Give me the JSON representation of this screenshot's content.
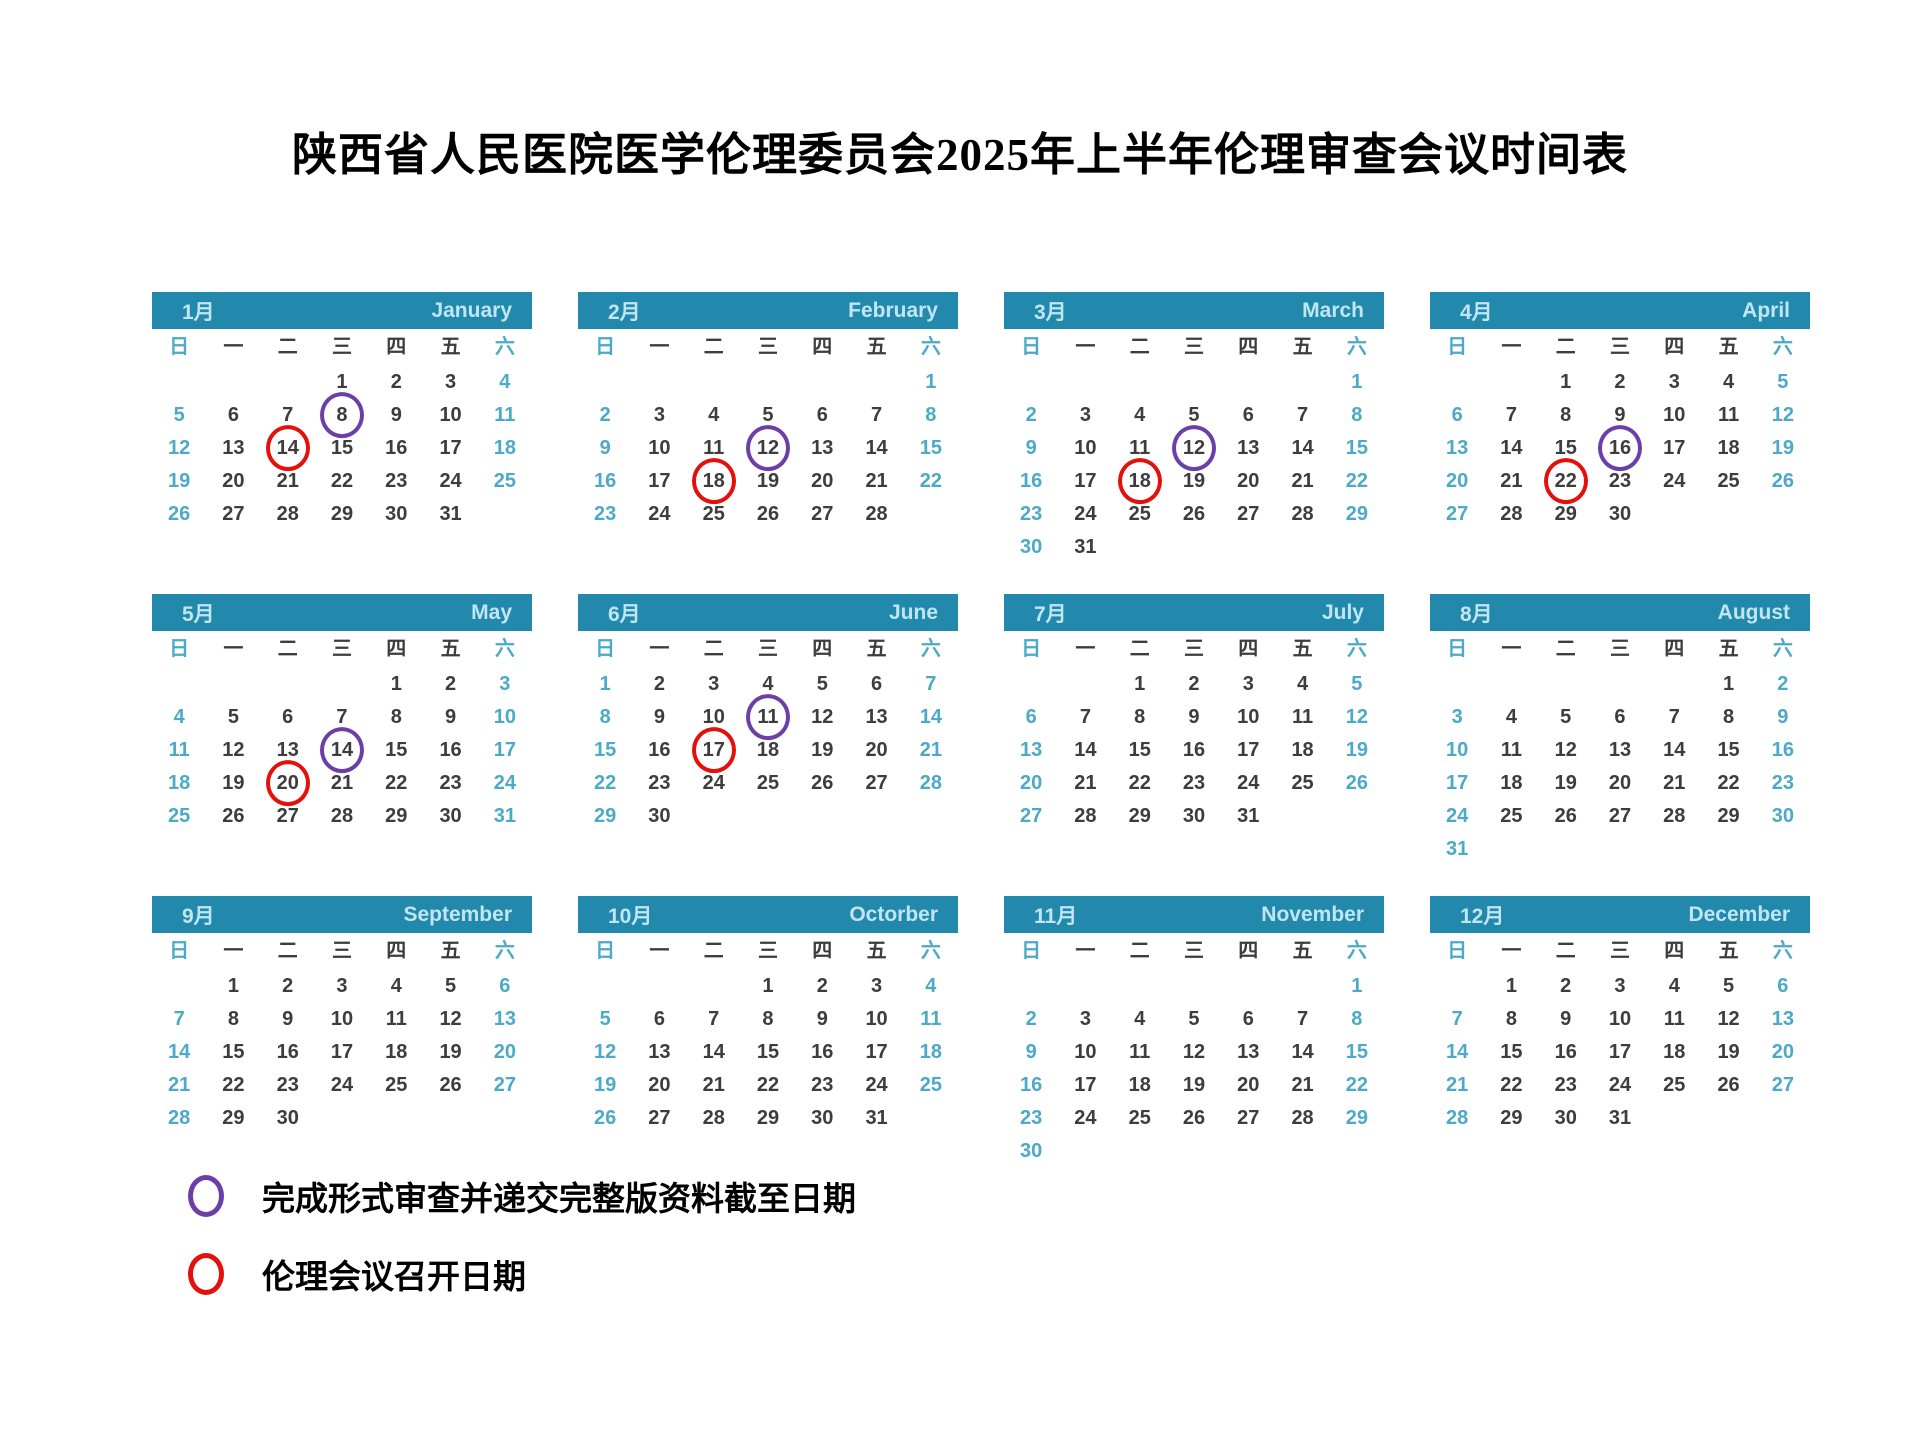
{
  "title": "陕西省人民医院医学伦理委员会2025年上半年伦理审查会议时间表",
  "weekdays": [
    "日",
    "一",
    "二",
    "三",
    "四",
    "五",
    "六"
  ],
  "months": [
    {
      "month_cn": "1月",
      "month_en": "January",
      "first_weekday": 3,
      "num_days": 31,
      "purple_circle_day": 8,
      "red_circle_day": 14
    },
    {
      "month_cn": "2月",
      "month_en": "February",
      "first_weekday": 6,
      "num_days": 28,
      "purple_circle_day": 12,
      "red_circle_day": 18
    },
    {
      "month_cn": "3月",
      "month_en": "March",
      "first_weekday": 6,
      "num_days": 31,
      "purple_circle_day": 12,
      "red_circle_day": 18
    },
    {
      "month_cn": "4月",
      "month_en": "April",
      "first_weekday": 2,
      "num_days": 30,
      "purple_circle_day": 16,
      "red_circle_day": 22
    },
    {
      "month_cn": "5月",
      "month_en": "May",
      "first_weekday": 4,
      "num_days": 31,
      "purple_circle_day": 14,
      "red_circle_day": 20
    },
    {
      "month_cn": "6月",
      "month_en": "June",
      "first_weekday": 0,
      "num_days": 30,
      "purple_circle_day": 11,
      "red_circle_day": 17
    },
    {
      "month_cn": "7月",
      "month_en": "July",
      "first_weekday": 2,
      "num_days": 31,
      "purple_circle_day": null,
      "red_circle_day": null
    },
    {
      "month_cn": "8月",
      "month_en": "August",
      "first_weekday": 5,
      "num_days": 31,
      "purple_circle_day": null,
      "red_circle_day": null
    },
    {
      "month_cn": "9月",
      "month_en": "September",
      "first_weekday": 1,
      "num_days": 30,
      "purple_circle_day": null,
      "red_circle_day": null
    },
    {
      "month_cn": "10月",
      "month_en": "Octorber",
      "first_weekday": 3,
      "num_days": 31,
      "purple_circle_day": null,
      "red_circle_day": null
    },
    {
      "month_cn": "11月",
      "month_en": "November",
      "first_weekday": 6,
      "num_days": 30,
      "purple_circle_day": null,
      "red_circle_day": null
    },
    {
      "month_cn": "12月",
      "month_en": "December",
      "first_weekday": 1,
      "num_days": 31,
      "purple_circle_day": null,
      "red_circle_day": null
    }
  ],
  "legend": {
    "purple": {
      "label": "完成形式审查并递交完整版资料截至日期"
    },
    "red": {
      "label": "伦理会议召开日期"
    }
  },
  "colors": {
    "header_bg": "#2389AC",
    "header_text": "#BFE6F2",
    "weekend_text": "#4CA9C8",
    "weekday_text": "#3D3D3D",
    "purple_circle": "#6B3FA8",
    "red_circle": "#E3100C"
  }
}
